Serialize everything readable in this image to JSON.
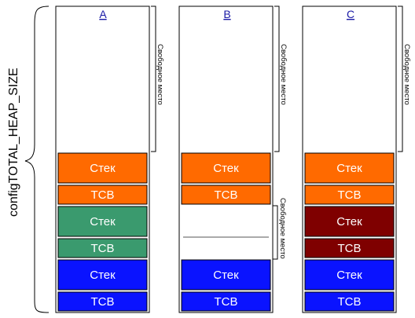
{
  "diagram": {
    "heap_label": "configTOTAL_HEAP_SIZE",
    "columns": [
      {
        "label": "A",
        "free_label": "Свободное место",
        "blocks": [
          {
            "label": "Стек",
            "color": "#FF6A00"
          },
          {
            "label": "TCB",
            "color": "#FF6A00"
          },
          {
            "label": "Стек",
            "color": "#3A9A6E"
          },
          {
            "label": "TCB",
            "color": "#3A9A6E"
          },
          {
            "label": "Стек",
            "color": "#0A13FF"
          },
          {
            "label": "TCB",
            "color": "#0A13FF"
          }
        ]
      },
      {
        "label": "B",
        "free_label": "Свободное место",
        "middle_free_label": "Свободное место",
        "blocks": [
          {
            "label": "Стек",
            "color": "#FF6A00"
          },
          {
            "label": "TCB",
            "color": "#FF6A00"
          },
          {
            "label": "",
            "color": "#FFFFFF"
          },
          {
            "label": "",
            "color": "#FFFFFF"
          },
          {
            "label": "Стек",
            "color": "#0A13FF"
          },
          {
            "label": "TCB",
            "color": "#0A13FF"
          }
        ]
      },
      {
        "label": "C",
        "free_label": "Свободное место",
        "blocks": [
          {
            "label": "Стек",
            "color": "#FF6A00"
          },
          {
            "label": "TCB",
            "color": "#FF6A00"
          },
          {
            "label": "Стек",
            "color": "#7F0000"
          },
          {
            "label": "TCB",
            "color": "#7F0000"
          },
          {
            "label": "Стек",
            "color": "#0A13FF"
          },
          {
            "label": "TCB",
            "color": "#0A13FF"
          }
        ]
      }
    ]
  }
}
